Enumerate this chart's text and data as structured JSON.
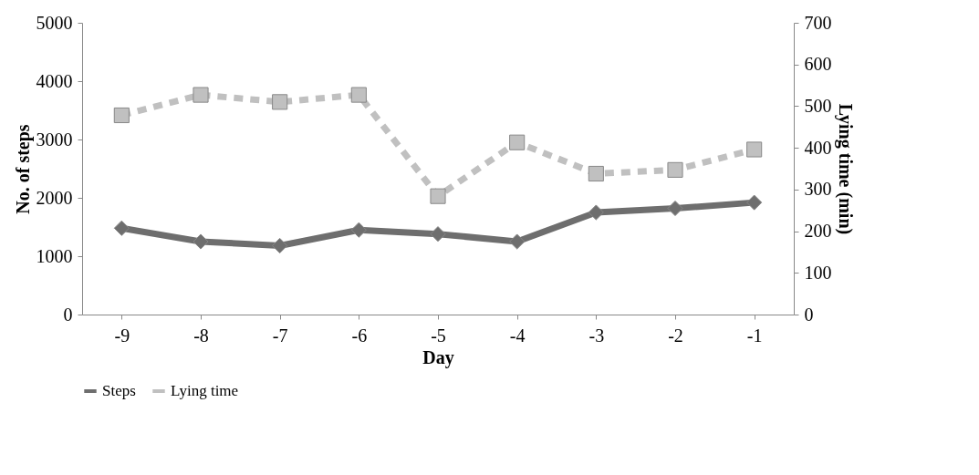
{
  "chart_data": {
    "type": "line",
    "xlabel": "Day",
    "ylabel": "No. of steps",
    "y2label": "Lying time (min)",
    "categories": [
      "-9",
      "-8",
      "-7",
      "-6",
      "-5",
      "-4",
      "-3",
      "-2",
      "-1"
    ],
    "series": [
      {
        "name": "Steps",
        "color": "#6e6e6e",
        "marker": "diamond",
        "line_style": "solid",
        "values": [
          1480,
          1250,
          1180,
          1450,
          1380,
          1250,
          1750,
          1820,
          1920
        ]
      },
      {
        "name": "Lying time",
        "color": "#c0c0c0",
        "marker": "square",
        "line_style": "dashed",
        "axis": "y2",
        "values": [
          478,
          527,
          510,
          527,
          284,
          413,
          338,
          347,
          396
        ]
      }
    ],
    "ylim": [
      0,
      5000
    ],
    "yticks": [
      0,
      1000,
      2000,
      3000,
      4000,
      5000
    ],
    "y2lim": [
      0,
      700
    ],
    "y2ticks": [
      0,
      100,
      200,
      300,
      400,
      500,
      600,
      700
    ],
    "grid": false,
    "legend": "bottom"
  }
}
